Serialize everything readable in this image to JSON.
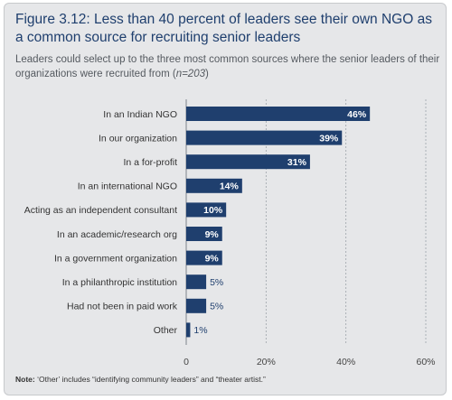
{
  "figure": {
    "title": "Figure 3.12: Less than 40 percent of leaders see their own NGO as a common source for recruiting senior leaders",
    "subtitle_main": "Leaders could select up to the three most common sources where the senior leaders of their organizations were recruited from (",
    "subtitle_n": "n=203",
    "subtitle_end": ")",
    "note_label": "Note:",
    "note_text": "‘Other’ includes “identifying community leaders” and “theater artist.”"
  },
  "chart_data": {
    "type": "bar",
    "orientation": "horizontal",
    "categories": [
      "In an Indian NGO",
      "In our organization",
      "In a for-profit",
      "In an international NGO",
      "Acting as an independent consultant",
      "In an academic/research org",
      "In a government organization",
      "In a philanthropic institution",
      "Had not been in paid work",
      "Other"
    ],
    "values": [
      46,
      39,
      31,
      14,
      10,
      9,
      9,
      5,
      5,
      1
    ],
    "value_labels": [
      "46%",
      "39%",
      "31%",
      "14%",
      "10%",
      "9%",
      "9%",
      "5%",
      "5%",
      "1%"
    ],
    "xlim": [
      0,
      60
    ],
    "xticks": [
      0,
      20,
      40,
      60
    ],
    "xtick_labels": [
      "0",
      "20%",
      "40%",
      "60%"
    ],
    "grid": "vertical dashed",
    "colors": {
      "bar": "#1f3f6e",
      "label_inside": "#ffffff",
      "label_outside": "#1f3f6e",
      "frame": "#e6e7e9",
      "title": "#1f3f6e"
    }
  }
}
